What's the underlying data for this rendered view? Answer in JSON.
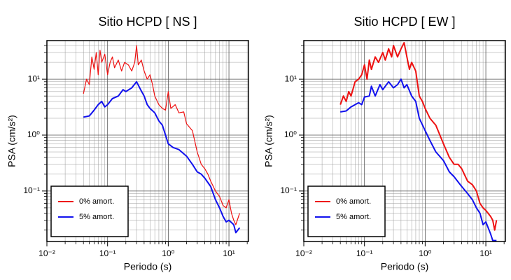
{
  "chart_data": [
    {
      "type": "line",
      "title": "Sitio HCPD [ NS ]",
      "x_label": "Periodo (s)",
      "y_label": "PSA (cm/s²)",
      "xscale": "log",
      "yscale": "log",
      "grid": true,
      "legend": "lower left",
      "xlim": [
        0.01,
        21
      ],
      "ylim": [
        0.0125,
        49
      ],
      "xticks": [
        {
          "value": 0.01,
          "label": "10⁻²"
        },
        {
          "value": 0.1,
          "label": "10⁻¹"
        },
        {
          "value": 1,
          "label": "10⁰"
        },
        {
          "value": 10,
          "label": "10¹"
        }
      ],
      "yticks": [
        {
          "value": 0.1,
          "label": "10⁻¹"
        },
        {
          "value": 1,
          "label": "10⁰"
        },
        {
          "value": 10,
          "label": "10¹"
        }
      ],
      "series": [
        {
          "name": "0% amort.",
          "color": "#ee1111",
          "width": 1.2,
          "x": [
            0.04,
            0.045,
            0.05,
            0.055,
            0.06,
            0.065,
            0.07,
            0.075,
            0.08,
            0.09,
            0.1,
            0.11,
            0.12,
            0.13,
            0.15,
            0.17,
            0.19,
            0.22,
            0.25,
            0.28,
            0.3,
            0.32,
            0.36,
            0.4,
            0.45,
            0.5,
            0.55,
            0.6,
            0.7,
            0.8,
            0.9,
            1.0,
            1.1,
            1.3,
            1.5,
            1.8,
            2.0,
            2.5,
            3,
            3.5,
            4,
            4.5,
            5,
            6,
            7,
            8,
            9,
            10,
            11,
            12,
            13,
            15
          ],
          "values": [
            5.5,
            10,
            8,
            25,
            15,
            30,
            12,
            33,
            20,
            28,
            12,
            20,
            25,
            16,
            22,
            14,
            20,
            18,
            14,
            20,
            40,
            18,
            22,
            14,
            10,
            12,
            8,
            5,
            3.5,
            3,
            2.8,
            6,
            3,
            3.5,
            2.5,
            2.6,
            1.6,
            1.2,
            0.5,
            0.3,
            0.25,
            0.2,
            0.15,
            0.1,
            0.08,
            0.055,
            0.05,
            0.07,
            0.04,
            0.03,
            0.025,
            0.04
          ]
        },
        {
          "name": "5% amort.",
          "color": "#1111ee",
          "width": 2,
          "x": [
            0.04,
            0.05,
            0.06,
            0.07,
            0.08,
            0.09,
            0.1,
            0.12,
            0.15,
            0.18,
            0.2,
            0.25,
            0.3,
            0.35,
            0.4,
            0.45,
            0.5,
            0.6,
            0.7,
            0.8,
            1.0,
            1.2,
            1.5,
            2.0,
            2.5,
            3,
            3.5,
            4,
            5,
            6,
            7,
            8,
            9,
            10,
            12,
            13,
            15
          ],
          "values": [
            2.1,
            2.2,
            2.8,
            3.5,
            4,
            3.2,
            3.5,
            4.5,
            5,
            6.5,
            6,
            7,
            9,
            6.5,
            5,
            3.5,
            3,
            2.5,
            1.8,
            1.5,
            0.7,
            0.6,
            0.55,
            0.42,
            0.3,
            0.22,
            0.2,
            0.17,
            0.12,
            0.07,
            0.05,
            0.035,
            0.028,
            0.03,
            0.025,
            0.018,
            0.022
          ]
        }
      ]
    },
    {
      "type": "line",
      "title": "Sitio HCPD [ EW ]",
      "x_label": "Periodo (s)",
      "y_label": "PSA (cm/s²)",
      "xscale": "log",
      "yscale": "log",
      "grid": true,
      "legend": "lower left",
      "xlim": [
        0.01,
        21
      ],
      "ylim": [
        0.0125,
        49
      ],
      "xticks": [
        {
          "value": 0.01,
          "label": "10⁻²"
        },
        {
          "value": 0.1,
          "label": "10⁻¹"
        },
        {
          "value": 1,
          "label": "10⁰"
        },
        {
          "value": 10,
          "label": "10¹"
        }
      ],
      "yticks": [
        {
          "value": 0.1,
          "label": "10⁻¹"
        },
        {
          "value": 1,
          "label": "10⁰"
        },
        {
          "value": 10,
          "label": "10¹"
        }
      ],
      "series": [
        {
          "name": "0% amort.",
          "color": "#ee1111",
          "width": 2,
          "x": [
            0.04,
            0.045,
            0.05,
            0.055,
            0.06,
            0.07,
            0.08,
            0.09,
            0.1,
            0.11,
            0.12,
            0.13,
            0.15,
            0.17,
            0.2,
            0.22,
            0.25,
            0.28,
            0.3,
            0.35,
            0.4,
            0.45,
            0.5,
            0.55,
            0.6,
            0.7,
            0.8,
            0.9,
            1.0,
            1.2,
            1.5,
            2,
            2.5,
            3,
            3.5,
            4,
            5,
            6,
            7,
            8,
            9,
            10,
            12,
            13,
            14,
            15
          ],
          "values": [
            3.5,
            5,
            4,
            6,
            5,
            9,
            10,
            12,
            18,
            10,
            22,
            15,
            25,
            20,
            30,
            22,
            35,
            25,
            40,
            25,
            35,
            45,
            25,
            15,
            20,
            14,
            5,
            4,
            3,
            2,
            1.5,
            0.7,
            0.4,
            0.3,
            0.3,
            0.25,
            0.15,
            0.13,
            0.1,
            0.06,
            0.05,
            0.045,
            0.035,
            0.03,
            0.02,
            0.03
          ]
        },
        {
          "name": "5% amort.",
          "color": "#1111ee",
          "width": 2,
          "x": [
            0.04,
            0.05,
            0.06,
            0.07,
            0.08,
            0.09,
            0.1,
            0.12,
            0.13,
            0.15,
            0.18,
            0.2,
            0.25,
            0.3,
            0.35,
            0.4,
            0.45,
            0.5,
            0.6,
            0.7,
            0.8,
            1.0,
            1.2,
            1.5,
            2,
            2.5,
            3,
            4,
            5,
            6,
            7,
            8,
            9,
            10,
            12,
            13,
            15
          ],
          "values": [
            2.6,
            2.7,
            3.2,
            3.5,
            3.8,
            3.5,
            4.8,
            5,
            7.5,
            5,
            8,
            6.5,
            9,
            7,
            8,
            10,
            7,
            8,
            5,
            4,
            2,
            1.2,
            0.8,
            0.5,
            0.35,
            0.22,
            0.18,
            0.12,
            0.09,
            0.07,
            0.05,
            0.04,
            0.025,
            0.028,
            0.017,
            0.013,
            0.013
          ]
        }
      ]
    }
  ]
}
